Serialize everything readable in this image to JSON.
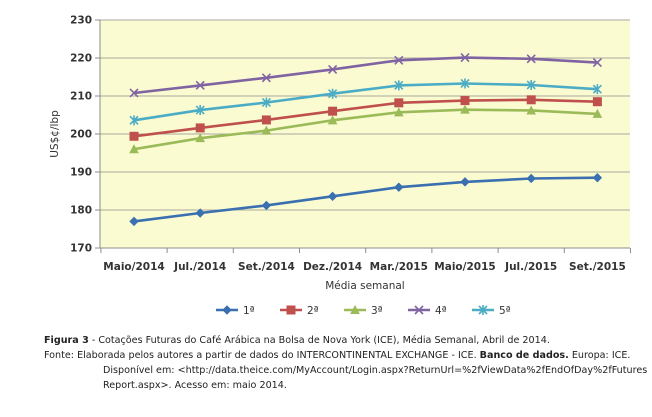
{
  "chart_data": {
    "type": "line",
    "title": "",
    "xlabel": "Média semanal",
    "ylabel": "US$¢/lbp",
    "ylim": [
      170,
      230
    ],
    "yticks": [
      170,
      180,
      190,
      200,
      210,
      220,
      230
    ],
    "categories": [
      "Maio/2014",
      "Jul./2014",
      "Set./2014",
      "Dez./2014",
      "Mar./2015",
      "Maio/2015",
      "Jul./2015",
      "Set./2015"
    ],
    "grid": true,
    "legend_position": "bottom",
    "plot_background": "#fbfbd2",
    "series": [
      {
        "name": "1ª",
        "color": "#3a6fb0",
        "marker": "diamond",
        "values": [
          177.0,
          179.2,
          181.2,
          183.6,
          186.0,
          187.4,
          188.3,
          188.5
        ]
      },
      {
        "name": "2ª",
        "color": "#c0504d",
        "marker": "square",
        "values": [
          199.4,
          201.6,
          203.7,
          206.0,
          208.2,
          208.8,
          209.0,
          208.5
        ]
      },
      {
        "name": "3ª",
        "color": "#9bbb59",
        "marker": "triangle",
        "values": [
          196.0,
          198.9,
          200.9,
          203.6,
          205.7,
          206.4,
          206.2,
          205.3
        ]
      },
      {
        "name": "4ª",
        "color": "#8064a2",
        "marker": "x",
        "values": [
          210.8,
          212.8,
          214.8,
          217.0,
          219.4,
          220.1,
          219.8,
          218.8
        ]
      },
      {
        "name": "5ª",
        "color": "#4bacc6",
        "marker": "star",
        "values": [
          203.6,
          206.3,
          208.3,
          210.6,
          212.8,
          213.3,
          212.9,
          211.8
        ]
      }
    ]
  },
  "caption": {
    "figure_label": "Figura 3",
    "figure_text": " - Cotações Futuras do Café Arábica na Bolsa de Nova York (ICE), Média Semanal, Abril de 2014.",
    "source_line1_a": "Fonte: Elaborada pelos autores a partir de dados do INTERCONTINENTAL EXCHANGE - ICE. ",
    "source_title": "Banco de dados.",
    "source_line1_b": " Europa: ICE.",
    "source_line2": "Disponível em: <http://data.theice.com/MyAccount/Login.aspx?ReturnUrl=%2fViewData%2fEndOfDay%2fFutures",
    "source_line3": "Report.aspx>. Acesso em: maio 2014."
  }
}
